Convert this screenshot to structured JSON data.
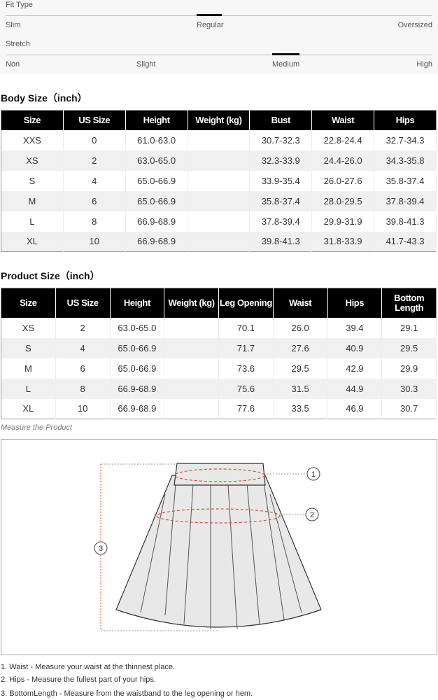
{
  "fit": {
    "label": "Fit Type",
    "options": [
      "Slim",
      "Regular",
      "Oversized"
    ],
    "selected": "Regular"
  },
  "stretch": {
    "label": "Stretch",
    "options": [
      "Non",
      "Slight",
      "Medium",
      "High"
    ],
    "selected": "Medium"
  },
  "body": {
    "title": "Body Size（inch）",
    "headers": [
      "Size",
      "US Size",
      "Height",
      "Weight (kg)",
      "Bust",
      "Waist",
      "Hips"
    ],
    "rows": [
      [
        "XXS",
        "0",
        "61.0-63.0",
        "",
        "30.7-32.3",
        "22.8-24.4",
        "32.7-34.3"
      ],
      [
        "XS",
        "2",
        "63.0-65.0",
        "",
        "32.3-33.9",
        "24.4-26.0",
        "34.3-35.8"
      ],
      [
        "S",
        "4",
        "65.0-66.9",
        "",
        "33.9-35.4",
        "26.0-27.6",
        "35.8-37.4"
      ],
      [
        "M",
        "6",
        "65.0-66.9",
        "",
        "35.8-37.4",
        "28.0-29.5",
        "37.8-39.4"
      ],
      [
        "L",
        "8",
        "66.9-68.9",
        "",
        "37.8-39.4",
        "29.9-31.9",
        "39.8-41.3"
      ],
      [
        "XL",
        "10",
        "66.9-68.9",
        "",
        "39.8-41.3",
        "31.8-33.9",
        "41.7-43.3"
      ]
    ]
  },
  "product": {
    "title": "Product Size（inch）",
    "headers": [
      "Size",
      "US Size",
      "Height",
      "Weight (kg)",
      "Leg Opening",
      "Waist",
      "Hips",
      "Bottom Length"
    ],
    "rows": [
      [
        "XS",
        "2",
        "63.0-65.0",
        "",
        "70.1",
        "26.0",
        "39.4",
        "29.1"
      ],
      [
        "S",
        "4",
        "65.0-66.9",
        "",
        "71.7",
        "27.6",
        "40.9",
        "29.5"
      ],
      [
        "M",
        "6",
        "65.0-66.9",
        "",
        "73.6",
        "29.5",
        "42.9",
        "29.9"
      ],
      [
        "L",
        "8",
        "66.9-68.9",
        "",
        "75.6",
        "31.5",
        "44.9",
        "30.3"
      ],
      [
        "XL",
        "10",
        "66.9-68.9",
        "",
        "77.6",
        "33.5",
        "46.9",
        "30.7"
      ]
    ]
  },
  "measure": {
    "caption": "Measure the Product",
    "markers": [
      "1",
      "2",
      "3"
    ],
    "accent": "#e0502a"
  },
  "notes": [
    "1. Waist - Measure your waist at the thinnest place.",
    "2. Hips - Measure the fullest part of your hips.",
    "3. BottomLength - Measure from the waistband to the leg opening or hem."
  ]
}
